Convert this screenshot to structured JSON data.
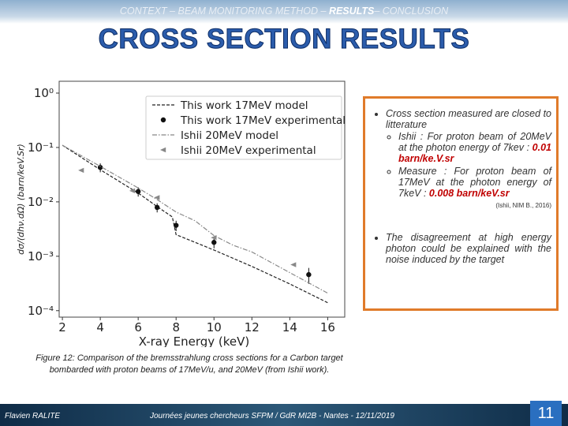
{
  "nav": {
    "before": "CONTEXT – BEAM MONITORING METHOD – ",
    "current": "RESULTS",
    "after": "– CONCLUSION"
  },
  "title": "CROSS SECTION RESULTS",
  "chart_data": {
    "type": "line",
    "log_y": true,
    "legend": "upper right",
    "xlabel": "X-ray Energy (keV)",
    "ylabel": "dσ/(dhν.dΩ) (barn/keV.Sr)",
    "xlim": [
      1.83,
      16.9
    ],
    "ylim": [
      7.6e-05,
      1.65
    ],
    "xticks": [
      2,
      4,
      6,
      8,
      10,
      12,
      14,
      16
    ],
    "yticks": [
      {
        "value": 1,
        "label": "10⁰"
      },
      {
        "value": 0.1,
        "label": "10⁻¹"
      },
      {
        "value": 0.01,
        "label": "10⁻²"
      },
      {
        "value": 0.001,
        "label": "10⁻³"
      },
      {
        "value": 0.0001,
        "label": "10⁻⁴"
      }
    ],
    "series": [
      {
        "name": "This work 17MeV model",
        "color": "#222222",
        "style": "dashed",
        "x": [
          2,
          4,
          6,
          7,
          7.8,
          8,
          10,
          12,
          14,
          16
        ],
        "values": [
          0.11,
          0.039,
          0.0145,
          0.0082,
          0.0053,
          0.0025,
          0.0013,
          0.00065,
          0.00031,
          0.00014
        ]
      },
      {
        "name": "This work 17MeV experimental",
        "color": "#111111",
        "style": "points",
        "x": [
          4,
          6,
          7,
          8,
          10,
          15
        ],
        "values": [
          0.043,
          0.0155,
          0.0079,
          0.0037,
          0.0018,
          0.00046
        ],
        "errors": [
          0.008,
          0.003,
          0.0015,
          0.0008,
          0.0004,
          0.00015
        ]
      },
      {
        "name": "Ishii 20MeV model",
        "color": "#888888",
        "style": "dashdot",
        "x": [
          2,
          4,
          6,
          7,
          8,
          9,
          10,
          11,
          12,
          14,
          16
        ],
        "values": [
          0.11,
          0.045,
          0.018,
          0.011,
          0.0065,
          0.0045,
          0.0024,
          0.0016,
          0.0012,
          0.0005,
          0.00021
        ]
      },
      {
        "name": "Ishii 20MeV experimental",
        "color": "#888888",
        "style": "triangles",
        "x": [
          3,
          5.7,
          7,
          10,
          14.2
        ],
        "values": [
          0.038,
          0.016,
          0.012,
          0.0022,
          0.0007
        ]
      }
    ]
  },
  "notes": {
    "bullets": [
      {
        "text": "Cross section measured are closed to litterature",
        "sub": [
          {
            "text": "Ishii : For proton beam of 20MeV at the photon energy of 7kev : ",
            "highlight": "0.01 barn/ke.V.sr"
          },
          {
            "text": "Measure : For proton beam of 17MeV at the photon energy of 7keV : ",
            "highlight": "0.008 barn/keV.sr"
          }
        ],
        "ref": "(Ishii, NIM B., 2016)"
      },
      {
        "text": "The disagreement at high energy photon could be explained with the noise induced by the target"
      }
    ]
  },
  "caption": "Figure 12: Comparison of the bremsstrahlung cross sections for a Carbon target bombarded with proton beams of 17MeV/u, and 20MeV (from Ishii work).",
  "footer": {
    "author": "Flavien RALITE",
    "event": "Journées jeunes chercheurs SFPM / GdR MI2B - Nantes - 12/11/2019",
    "page": 11
  }
}
